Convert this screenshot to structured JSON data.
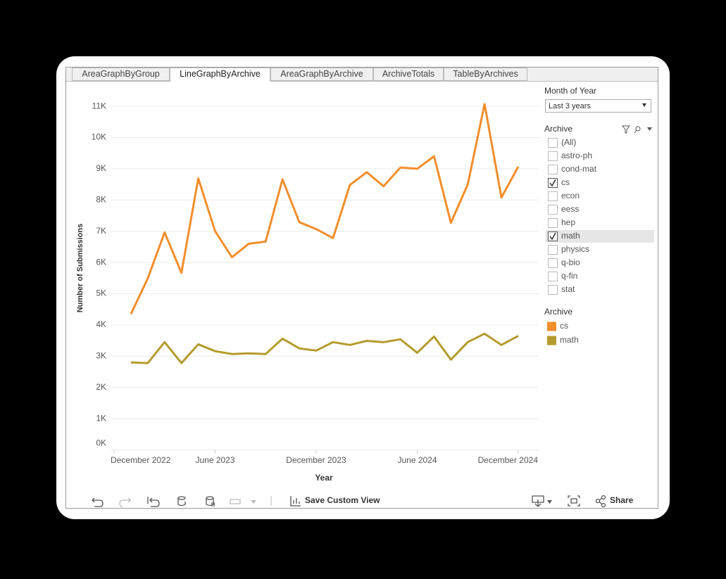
{
  "tabs": [
    "AreaGraphByGroup",
    "LineGraphByArchive",
    "AreaGraphByArchive",
    "ArchiveTotals",
    "TableByArchives"
  ],
  "active_tab": 1,
  "filters": {
    "month": {
      "title": "Month of Year",
      "selected": "Last 3 years"
    },
    "archive": {
      "title": "Archive",
      "options": [
        "(All)",
        "astro-ph",
        "cond-mat",
        "cs",
        "econ",
        "eess",
        "hep",
        "math",
        "physics",
        "q-bio",
        "q-fin",
        "stat"
      ],
      "checked": [
        false,
        false,
        false,
        true,
        false,
        false,
        false,
        true,
        false,
        false,
        false,
        false
      ]
    }
  },
  "legend_title": "Archive",
  "toolbar": {
    "save": "Save Custom View",
    "share": "Share"
  },
  "chart_data": {
    "type": "line",
    "x_label": "Year",
    "y_label": "Number of Submissions",
    "x": [
      "2023-01",
      "2023-02",
      "2023-03",
      "2023-04",
      "2023-05",
      "2023-06",
      "2023-07",
      "2023-08",
      "2023-09",
      "2023-10",
      "2023-11",
      "2023-12",
      "2024-01",
      "2024-02",
      "2024-03",
      "2024-04",
      "2024-05",
      "2024-06",
      "2024-07",
      "2024-08",
      "2024-09",
      "2024-10",
      "2024-11",
      "2024-12"
    ],
    "xlim": [
      "2022-12",
      "2024-12"
    ],
    "xticks": [
      {
        "value": "2022-12",
        "label": "December 2022"
      },
      {
        "value": "2023-06",
        "label": "June 2023"
      },
      {
        "value": "2023-12",
        "label": "December 2023"
      },
      {
        "value": "2024-06",
        "label": "June 2024"
      },
      {
        "value": "2024-12",
        "label": "December 2024"
      }
    ],
    "ylim": [
      0,
      11250
    ],
    "yticks": [
      {
        "value": 0,
        "label": "0K"
      },
      {
        "value": 1000,
        "label": "1K"
      },
      {
        "value": 2000,
        "label": "2K"
      },
      {
        "value": 3000,
        "label": "3K"
      },
      {
        "value": 4000,
        "label": "4K"
      },
      {
        "value": 5000,
        "label": "5K"
      },
      {
        "value": 6000,
        "label": "6K"
      },
      {
        "value": 7000,
        "label": "7K"
      },
      {
        "value": 8000,
        "label": "8K"
      },
      {
        "value": 9000,
        "label": "9K"
      },
      {
        "value": 10000,
        "label": "10K"
      },
      {
        "value": 11000,
        "label": "11K"
      }
    ],
    "grid": true,
    "series": [
      {
        "name": "cs",
        "color": "#f28e2b",
        "values": [
          4350,
          5490,
          6960,
          5670,
          8690,
          7000,
          6170,
          6600,
          6670,
          8660,
          7290,
          7070,
          6780,
          8480,
          8890,
          8440,
          9040,
          9000,
          9400,
          7270,
          8500,
          11070,
          8080,
          9070
        ]
      },
      {
        "name": "math",
        "color": "#b49b2d",
        "values": [
          2800,
          2780,
          3450,
          2780,
          3380,
          3160,
          3070,
          3090,
          3070,
          3560,
          3250,
          3180,
          3450,
          3360,
          3490,
          3450,
          3540,
          3110,
          3630,
          2890,
          3450,
          3720,
          3360,
          3650
        ]
      }
    ]
  }
}
